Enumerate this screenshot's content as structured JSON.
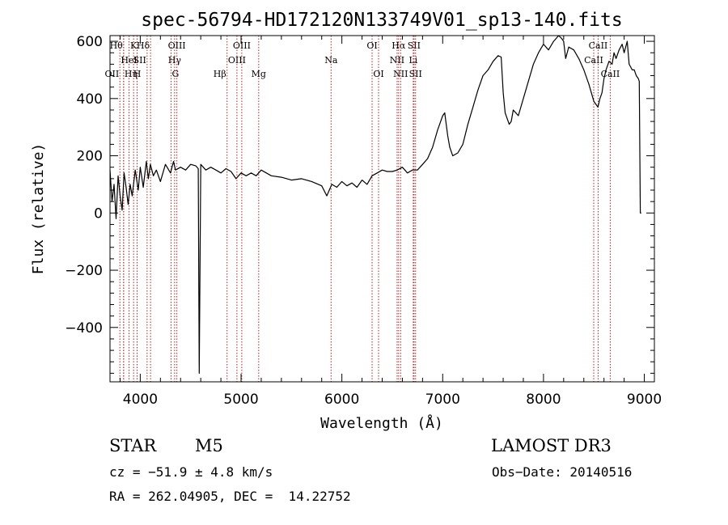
{
  "chart_data": {
    "type": "line",
    "title": "spec-56794-HD172120N133749V01_sp13-140.fits",
    "xlabel": "Wavelength (Å)",
    "ylabel": "Flux (relative)",
    "xlim": [
      3700,
      9100
    ],
    "ylim": [
      -590,
      620
    ],
    "xticks": [
      4000,
      5000,
      6000,
      7000,
      8000,
      9000
    ],
    "yticks": [
      -400,
      -200,
      0,
      200,
      400,
      600
    ],
    "grid": false,
    "series": [
      {
        "x": [
          3700,
          3720,
          3740,
          3760,
          3780,
          3800,
          3820,
          3840,
          3860,
          3880,
          3900,
          3920,
          3950,
          3980,
          4000,
          4030,
          4060,
          4080,
          4100,
          4130,
          4160,
          4200,
          4250,
          4300,
          4330,
          4350,
          4400,
          4450,
          4500,
          4550,
          4575,
          4585,
          4600,
          4650,
          4700,
          4750,
          4800,
          4850,
          4900,
          4950,
          5000,
          5050,
          5100,
          5150,
          5200,
          5300,
          5400,
          5500,
          5600,
          5700,
          5800,
          5850,
          5900,
          5950,
          6000,
          6050,
          6100,
          6150,
          6200,
          6250,
          6300,
          6350,
          6400,
          6450,
          6500,
          6550,
          6600,
          6650,
          6700,
          6750,
          6800,
          6850,
          6900,
          6950,
          7000,
          7020,
          7050,
          7070,
          7100,
          7150,
          7200,
          7250,
          7300,
          7350,
          7400,
          7450,
          7500,
          7550,
          7580,
          7600,
          7620,
          7640,
          7660,
          7680,
          7700,
          7750,
          7800,
          7850,
          7900,
          7950,
          8000,
          8050,
          8100,
          8150,
          8180,
          8200,
          8220,
          8250,
          8300,
          8350,
          8400,
          8450,
          8500,
          8520,
          8540,
          8560,
          8580,
          8600,
          8620,
          8650,
          8680,
          8700,
          8720,
          8750,
          8780,
          8800,
          8830,
          8850,
          8880,
          8900,
          8920,
          8940,
          8950,
          8960,
          8970
        ],
        "y": [
          150,
          40,
          100,
          -20,
          130,
          60,
          10,
          140,
          90,
          30,
          100,
          60,
          150,
          80,
          160,
          90,
          180,
          120,
          170,
          130,
          150,
          110,
          170,
          140,
          180,
          150,
          160,
          150,
          170,
          165,
          155,
          -560,
          170,
          150,
          160,
          150,
          140,
          155,
          145,
          120,
          140,
          130,
          140,
          130,
          150,
          130,
          125,
          115,
          120,
          110,
          95,
          60,
          100,
          90,
          110,
          95,
          105,
          90,
          115,
          100,
          130,
          140,
          150,
          145,
          145,
          150,
          160,
          140,
          150,
          150,
          170,
          190,
          230,
          290,
          340,
          350,
          270,
          230,
          200,
          210,
          240,
          310,
          370,
          430,
          480,
          500,
          530,
          550,
          545,
          420,
          350,
          330,
          310,
          320,
          360,
          340,
          400,
          460,
          520,
          560,
          590,
          570,
          600,
          620,
          610,
          600,
          540,
          580,
          570,
          540,
          500,
          450,
          390,
          380,
          370,
          400,
          420,
          470,
          500,
          530,
          520,
          560,
          540,
          570,
          590,
          560,
          600,
          520,
          500,
          500,
          480,
          470,
          460,
          0,
          0
        ]
      }
    ],
    "lines": [
      {
        "x": 3798,
        "label": "OII",
        "row": 2,
        "anchor": "end"
      },
      {
        "x": 3835,
        "label": "Hθ",
        "row": 0,
        "anchor": "end"
      },
      {
        "x": 3835,
        "label": "Hη",
        "row": 2,
        "anchor": "start"
      },
      {
        "x": 3889,
        "label": "HeI",
        "row": 1,
        "anchor": "middle"
      },
      {
        "x": 3934,
        "label": "K",
        "row": 0,
        "anchor": "middle"
      },
      {
        "x": 3969,
        "label": "H",
        "row": 2,
        "anchor": "middle"
      },
      {
        "x": 4068,
        "label": "SII",
        "row": 1,
        "anchor": "end"
      },
      {
        "x": 4102,
        "label": "Hδ",
        "row": 0,
        "anchor": "end"
      },
      {
        "x": 4306,
        "label": "G",
        "row": 2,
        "anchor": "start"
      },
      {
        "x": 4341,
        "label": "Hγ",
        "row": 1,
        "anchor": "middle"
      },
      {
        "x": 4363,
        "label": "OIII",
        "row": 0,
        "anchor": "middle"
      },
      {
        "x": 4861,
        "label": "Hβ",
        "row": 2,
        "anchor": "end"
      },
      {
        "x": 4959,
        "label": "OIII",
        "row": 1,
        "anchor": "middle"
      },
      {
        "x": 5007,
        "label": "OIII",
        "row": 0,
        "anchor": "middle"
      },
      {
        "x": 5175,
        "label": "Mg",
        "row": 2,
        "anchor": "middle"
      },
      {
        "x": 5893,
        "label": "Na",
        "row": 1,
        "anchor": "middle"
      },
      {
        "x": 6300,
        "label": "OI",
        "row": 0,
        "anchor": "middle"
      },
      {
        "x": 6364,
        "label": "OI",
        "row": 2,
        "anchor": "middle"
      },
      {
        "x": 6548,
        "label": "NII",
        "row": 1,
        "anchor": "middle"
      },
      {
        "x": 6563,
        "label": "Hα",
        "row": 0,
        "anchor": "middle"
      },
      {
        "x": 6583,
        "label": "NII",
        "row": 2,
        "anchor": "middle"
      },
      {
        "x": 6708,
        "label": "Li",
        "row": 1,
        "anchor": "middle"
      },
      {
        "x": 6716,
        "label": "SII",
        "row": 0,
        "anchor": "middle"
      },
      {
        "x": 6731,
        "label": "SII",
        "row": 2,
        "anchor": "middle"
      },
      {
        "x": 8498,
        "label": "CaII",
        "row": 1,
        "anchor": "middle"
      },
      {
        "x": 8542,
        "label": "CaII",
        "row": 0,
        "anchor": "middle"
      },
      {
        "x": 8662,
        "label": "CaII",
        "row": 2,
        "anchor": "middle"
      }
    ],
    "line_color": "#b22222"
  },
  "info": {
    "object_class": "STAR",
    "subclass": "M5",
    "survey": "LAMOST DR3",
    "redshift": "cz = −51.9 ± 4.8 km/s",
    "obs_date": "Obs−Date: 20140516",
    "coords": "RA = 262.04905, DEC =  14.22752"
  }
}
